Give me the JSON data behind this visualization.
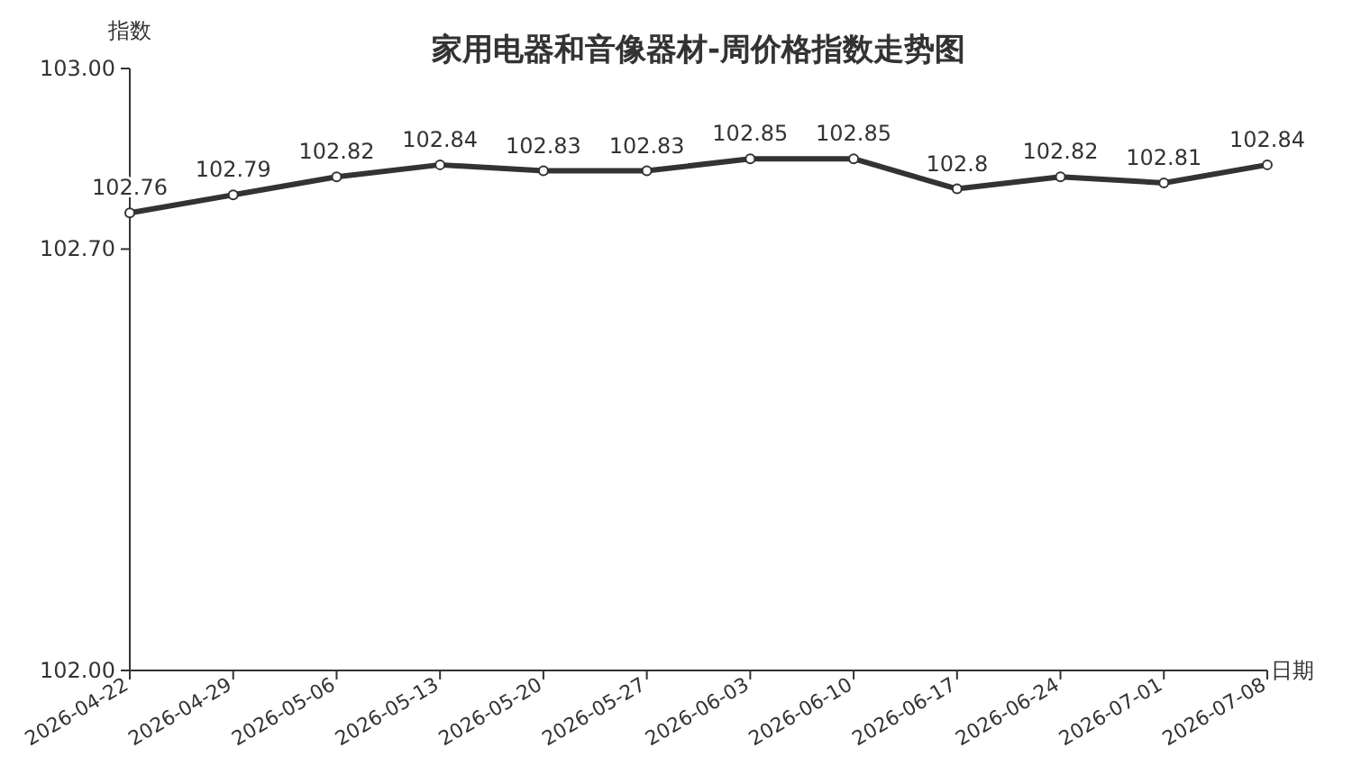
{
  "chart_data": {
    "type": "line",
    "title": "家用电器和音像器材-周价格指数走势图",
    "xlabel": "日期",
    "ylabel": "指数",
    "categories": [
      "2026-04-22",
      "2026-04-29",
      "2026-05-06",
      "2026-05-13",
      "2026-05-20",
      "2026-05-27",
      "2026-06-03",
      "2026-06-10",
      "2026-06-17",
      "2026-06-24",
      "2026-07-01",
      "2026-07-08"
    ],
    "series": [
      {
        "color": "#333333",
        "values": [
          102.76,
          102.79,
          102.82,
          102.84,
          102.83,
          102.83,
          102.85,
          102.85,
          102.8,
          102.82,
          102.81,
          102.84
        ]
      }
    ],
    "ylim": [
      102,
      103
    ],
    "yticks": [
      {
        "value": 102,
        "label": "102.00"
      },
      {
        "value": 102.7,
        "label": "102.70"
      },
      {
        "value": 103,
        "label": "103.00"
      }
    ],
    "data_labels": true,
    "marker": "circle",
    "line_style": "solid",
    "grid": false
  }
}
